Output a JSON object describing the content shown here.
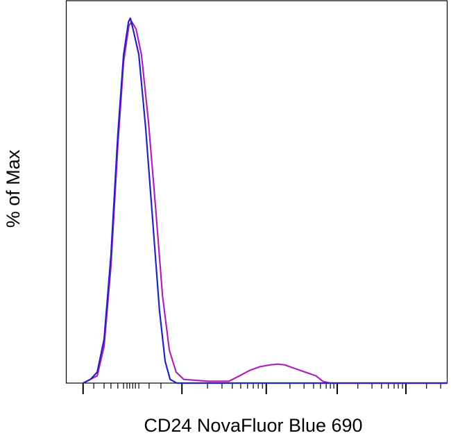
{
  "chart_data": {
    "type": "line",
    "xlabel": "CD24 NovaFluor Blue 690",
    "ylabel": "% of Max",
    "xlim": [
      0,
      1000
    ],
    "ylim": [
      0,
      105
    ],
    "xticks": [
      45,
      304,
      525,
      711,
      891
    ],
    "minor_xticks": [
      73,
      100,
      118,
      136,
      151,
      160,
      167,
      175,
      182,
      191,
      218,
      249,
      371,
      409,
      436,
      458,
      476,
      491,
      504,
      515,
      587,
      624,
      649,
      667,
      682,
      693,
      702,
      765,
      802,
      827,
      845,
      860,
      871,
      882,
      945,
      982
    ],
    "series": [
      {
        "color": "#b020b8",
        "x": [
          45,
          64,
          82,
          100,
          118,
          136,
          151,
          165,
          173,
          184,
          198,
          216,
          235,
          253,
          271,
          289,
          309,
          373,
          427,
          455,
          482,
          509,
          536,
          555,
          573,
          600,
          627,
          655,
          673,
          691,
          1000
        ],
        "values": [
          0,
          1,
          2,
          10,
          32,
          65,
          88,
          98,
          99,
          97,
          90,
          72,
          48,
          24,
          9,
          3,
          1,
          0.5,
          0.5,
          2,
          3.5,
          4.5,
          5,
          5.2,
          5,
          4,
          3,
          2,
          0.5,
          0,
          0
        ]
      },
      {
        "color": "#2222c0",
        "x": [
          45,
          64,
          82,
          100,
          118,
          136,
          151,
          164,
          169,
          176,
          191,
          209,
          227,
          245,
          260,
          273,
          291,
          1000
        ],
        "values": [
          0,
          1,
          3,
          12,
          35,
          68,
          90,
          99,
          100,
          97,
          90,
          70,
          45,
          20,
          6,
          1,
          0,
          0
        ]
      }
    ]
  }
}
